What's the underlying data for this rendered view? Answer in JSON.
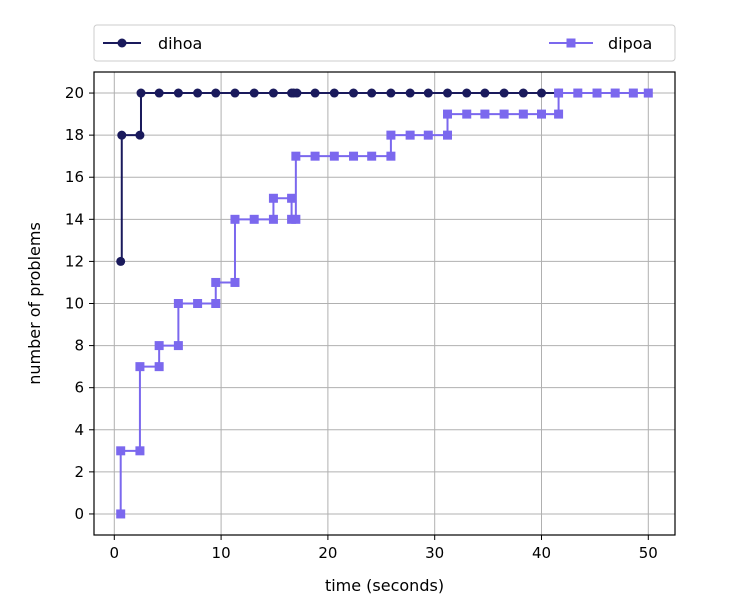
{
  "chart_data": {
    "type": "line",
    "drawstyle": "steps-post",
    "xlabel": "time (seconds)",
    "ylabel": "number of problems",
    "xlim": [
      -1.9,
      52.5
    ],
    "ylim": [
      -1,
      21
    ],
    "xticks": [
      0,
      10,
      20,
      30,
      40,
      50
    ],
    "yticks": [
      0,
      2,
      4,
      6,
      8,
      10,
      12,
      14,
      16,
      18,
      20
    ],
    "grid": true,
    "legend_placement": "top, above plot",
    "series": [
      {
        "name": "dihoa",
        "color": "#1a1a5c",
        "marker": "circle",
        "points": [
          [
            0.6,
            12
          ],
          [
            0.7,
            18
          ],
          [
            2.4,
            18
          ],
          [
            2.5,
            20
          ],
          [
            4.2,
            20
          ],
          [
            6.0,
            20
          ],
          [
            7.8,
            20
          ],
          [
            9.5,
            20
          ],
          [
            11.3,
            20
          ],
          [
            13.1,
            20
          ],
          [
            14.9,
            20
          ],
          [
            16.6,
            20
          ],
          [
            16.8,
            20
          ],
          [
            17.1,
            20
          ],
          [
            18.8,
            20
          ],
          [
            20.6,
            20
          ],
          [
            22.4,
            20
          ],
          [
            24.1,
            20
          ],
          [
            25.9,
            20
          ],
          [
            27.7,
            20
          ],
          [
            29.4,
            20
          ],
          [
            31.2,
            20
          ],
          [
            33.0,
            20
          ],
          [
            34.7,
            20
          ],
          [
            36.5,
            20
          ],
          [
            38.3,
            20
          ],
          [
            40.0,
            20
          ],
          [
            41.6,
            20
          ]
        ]
      },
      {
        "name": "dipoa",
        "color": "#7b68ee",
        "marker": "square",
        "points": [
          [
            0.6,
            0
          ],
          [
            0.6,
            3
          ],
          [
            2.4,
            3
          ],
          [
            2.4,
            7
          ],
          [
            4.2,
            7
          ],
          [
            4.2,
            8
          ],
          [
            6.0,
            8
          ],
          [
            6.0,
            10
          ],
          [
            7.8,
            10
          ],
          [
            9.5,
            10
          ],
          [
            9.5,
            11
          ],
          [
            11.3,
            11
          ],
          [
            11.3,
            14
          ],
          [
            13.1,
            14
          ],
          [
            14.9,
            14
          ],
          [
            14.9,
            15
          ],
          [
            16.6,
            15
          ],
          [
            16.6,
            14
          ],
          [
            17.0,
            14
          ],
          [
            17.0,
            17
          ],
          [
            18.8,
            17
          ],
          [
            20.6,
            17
          ],
          [
            22.4,
            17
          ],
          [
            24.1,
            17
          ],
          [
            25.9,
            17
          ],
          [
            25.9,
            18
          ],
          [
            27.7,
            18
          ],
          [
            29.4,
            18
          ],
          [
            31.2,
            18
          ],
          [
            31.2,
            19
          ],
          [
            33.0,
            19
          ],
          [
            34.7,
            19
          ],
          [
            36.5,
            19
          ],
          [
            38.3,
            19
          ],
          [
            40.0,
            19
          ],
          [
            41.6,
            19
          ],
          [
            41.6,
            20
          ],
          [
            43.4,
            20
          ],
          [
            45.2,
            20
          ],
          [
            46.9,
            20
          ],
          [
            48.6,
            20
          ],
          [
            50.0,
            20
          ]
        ]
      }
    ]
  }
}
